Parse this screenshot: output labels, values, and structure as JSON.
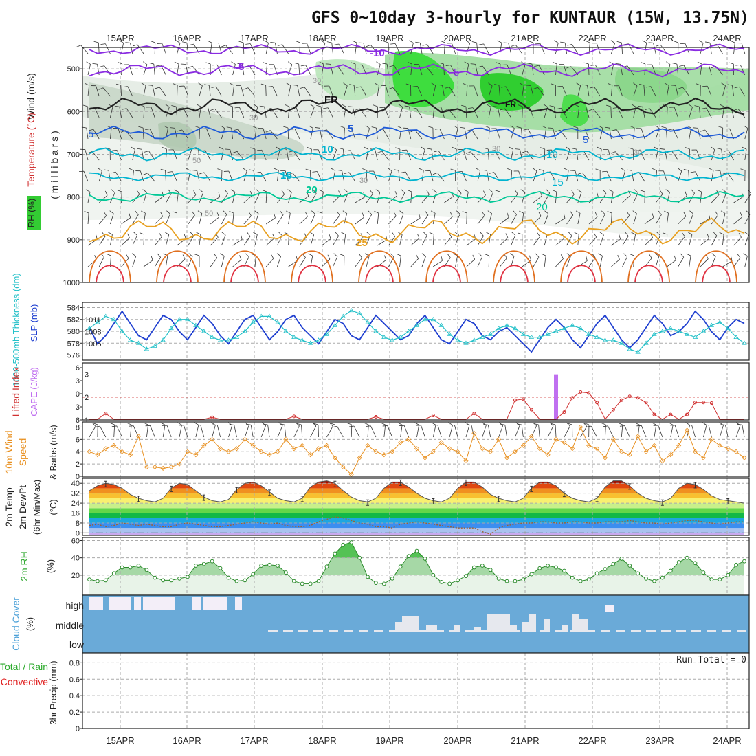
{
  "title": "GFS 0~10day 3-hourly for KUNTAUR (15W, 13.75N)",
  "date_labels": [
    "15APR",
    "16APR",
    "17APR",
    "18APR",
    "19APR",
    "20APR",
    "21APR",
    "22APR",
    "23APR",
    "24APR"
  ],
  "colors": {
    "rh_green": "#33cc33",
    "bright_green": "#00ee00",
    "temp_purple": "#8a2be2",
    "temp_blue": "#1e5ad8",
    "temp_cyan": "#00b4d0",
    "temp_teal": "#00c896",
    "temp_orange": "#e8a020",
    "slp_blue": "#1f3fd0",
    "thickness_cyan": "#22c0c8",
    "cape_violet": "#c070f0",
    "li_red": "#d03030",
    "wind_orange": "#e89020",
    "cloud_blue": "#6aaad8"
  },
  "chart_data": [
    {
      "type": "heatmap",
      "panel": "upper-air",
      "ylabel_parts": [
        "RH (%)",
        "Temperature (°C)",
        "Wind (m/s)"
      ],
      "yaxis_label": "( m i l l i b a r s )",
      "yticks": [
        500,
        600,
        700,
        800,
        900,
        1000
      ],
      "ylim": [
        1000,
        450
      ],
      "isotherm_labels": [
        "-10",
        "-5",
        "FR",
        "5",
        "10",
        "15",
        "20",
        "25"
      ],
      "rh_contour_labels": [
        "30",
        "50"
      ],
      "freezing_level_label": "FR"
    },
    {
      "type": "line",
      "panel": "slp-thickness",
      "ylabel_left": "1000-500mb Thickness (dm)",
      "ylabel_right": "SLP (mb)",
      "yticks_thickness": [
        576,
        578,
        580,
        582,
        584
      ],
      "yticks_slp": [
        1005,
        1008,
        1011
      ],
      "series": [
        {
          "name": "SLP (mb)",
          "values": [
            1009,
            1005,
            1007,
            1010,
            1013,
            1010,
            1007,
            1006,
            1009,
            1012,
            1011,
            1008,
            1006,
            1009,
            1012,
            1010,
            1007,
            1005,
            1008,
            1011,
            1012,
            1009,
            1006,
            1008,
            1011,
            1012,
            1009,
            1007,
            1005,
            1008,
            1011,
            1010,
            1007,
            1006,
            1009,
            1012,
            1010,
            1008,
            1006,
            1007,
            1010,
            1012,
            1009,
            1006,
            1005,
            1008,
            1011,
            1010,
            1007,
            1006,
            1008,
            1009,
            1007,
            1005,
            1003,
            1006,
            1009,
            1011,
            1009,
            1006,
            1004,
            1007,
            1010,
            1012,
            1009,
            1006,
            1004,
            1006,
            1009,
            1012,
            1010,
            1007,
            1008,
            1010,
            1013,
            1011,
            1008,
            1006,
            1009,
            1011,
            1010
          ]
        },
        {
          "name": "1000-500mb Thickness (dm)",
          "values": [
            580.5,
            581.5,
            582.5,
            582,
            580,
            578.5,
            578,
            577,
            577.5,
            578.5,
            580.5,
            582,
            582,
            581,
            580,
            579,
            578.5,
            578.5,
            579,
            580,
            581.5,
            582.5,
            582.5,
            581.5,
            580,
            579,
            578.5,
            578,
            578.5,
            579.5,
            581,
            582.5,
            583.5,
            583,
            581.5,
            580,
            579,
            578.5,
            579,
            580,
            581,
            582,
            582,
            581,
            579.5,
            578.5,
            578,
            578.5,
            579,
            579.5,
            580.5,
            581,
            580.5,
            579.5,
            579,
            579,
            579.5,
            580,
            580.5,
            581,
            580.5,
            579.5,
            579,
            578.5,
            578.5,
            578,
            577,
            576.5,
            578,
            579.5,
            580,
            580.5,
            580,
            579.5,
            579,
            580,
            581,
            581.5,
            580.5,
            579,
            578
          ]
        }
      ]
    },
    {
      "type": "bar",
      "panel": "cape-li",
      "ylabel_left": "Lifted Index",
      "ylabel_right": "CAPE (J/kg)",
      "yticks_li": [
        -6,
        -3,
        0,
        3,
        6
      ],
      "yticks_cape": [
        1,
        2,
        3
      ],
      "series": [
        {
          "name": "CAPE (J/kg)",
          "values": [
            [
              57,
              3.0
            ]
          ]
        },
        {
          "name": "Lifted Index",
          "values": [
            6,
            6,
            4.8,
            6,
            6,
            6,
            6,
            6,
            6,
            6,
            6,
            6,
            6,
            6,
            6,
            5.6,
            6,
            6,
            6,
            6,
            6,
            6,
            6,
            6,
            6,
            5.4,
            6,
            6,
            6,
            6,
            6,
            6,
            6,
            6,
            6,
            5.5,
            6,
            6,
            6,
            6,
            6,
            6,
            5.2,
            6,
            6,
            6,
            6,
            4.8,
            6,
            6,
            6,
            6,
            2,
            1.8,
            4,
            6,
            6,
            6,
            4.5,
            1.5,
            0.3,
            0.5,
            2.5,
            6,
            4,
            2,
            1.2,
            1.5,
            2.5,
            5,
            6,
            5,
            6,
            5,
            2.5,
            2.5,
            2.6,
            6,
            6,
            6,
            6
          ]
        }
      ]
    },
    {
      "type": "line",
      "panel": "wind-10m",
      "ylabel": "10m Wind Speed (m/s) & Barbs",
      "yticks": [
        0,
        2,
        4,
        6,
        8
      ],
      "ylim": [
        0,
        8.5
      ],
      "series": [
        {
          "name": "Speed",
          "values": [
            4,
            3.5,
            4.5,
            5,
            4,
            3.5,
            6.5,
            1.5,
            1.5,
            1.3,
            1.5,
            2,
            4,
            3.5,
            5,
            6,
            4.5,
            4,
            4.5,
            6,
            5,
            4,
            3.5,
            4,
            6,
            4.5,
            5,
            3.5,
            4.5,
            5,
            3,
            1.5,
            0.3,
            3,
            5,
            4,
            3.5,
            4,
            5.5,
            6,
            4.5,
            3,
            4,
            5.5,
            4.5,
            4,
            2.5,
            7,
            4.5,
            4,
            6,
            3,
            4,
            5,
            6.5,
            4.5,
            3.5,
            6,
            5.5,
            4.5,
            8,
            5,
            4.5,
            3,
            6,
            4,
            3.5,
            6.5,
            4,
            5,
            2.5,
            3.5,
            5,
            7.5,
            4,
            3,
            6,
            5,
            4.5,
            4,
            3
          ]
        }
      ]
    },
    {
      "type": "area",
      "panel": "temperature-2m",
      "ylabel": "2m Temp, 2m DewPt (6hr Min/Max) (°C)",
      "yticks": [
        0,
        8,
        16,
        24,
        32,
        40
      ],
      "ylim": [
        -2,
        44
      ],
      "series": [
        {
          "name": "2m Temp",
          "values": [
            34,
            38,
            40,
            39,
            36,
            31,
            28,
            26,
            25,
            28,
            36,
            40,
            39,
            34,
            29,
            26,
            25,
            27,
            35,
            40,
            41,
            38,
            33,
            28,
            26,
            25,
            28,
            37,
            41,
            42,
            40,
            34,
            29,
            26,
            25,
            28,
            36,
            41,
            41,
            37,
            32,
            28,
            26,
            25,
            28,
            36,
            41,
            41,
            37,
            31,
            28,
            26,
            25,
            28,
            36,
            41,
            41,
            38,
            32,
            28,
            26,
            25,
            28,
            37,
            42,
            42,
            38,
            32,
            28,
            26,
            25,
            28,
            36,
            40,
            39,
            35,
            30,
            27,
            26,
            25,
            24
          ]
        },
        {
          "name": "2m DewPt",
          "values": [
            6,
            7,
            5,
            6,
            8,
            7,
            6,
            7,
            6,
            5,
            5,
            7,
            8,
            7,
            6,
            5,
            5,
            6,
            7,
            8,
            9,
            8,
            7,
            8,
            6,
            5,
            5,
            6,
            9,
            11,
            13,
            12,
            10,
            8,
            7,
            5,
            5,
            4,
            7,
            8,
            9,
            8,
            7,
            6,
            5,
            4,
            4,
            4,
            1,
            -1,
            4,
            6,
            7,
            8,
            8,
            9,
            9,
            8,
            8,
            9,
            9,
            8,
            8,
            9,
            9,
            9,
            10,
            9,
            8,
            8,
            7,
            8,
            9,
            10,
            10,
            9,
            8,
            7,
            8,
            9,
            9
          ]
        }
      ]
    },
    {
      "type": "area",
      "panel": "rh-2m",
      "ylabel": "2m RH (%)",
      "yticks": [
        20,
        40,
        60
      ],
      "ylim": [
        0,
        62
      ],
      "series": [
        {
          "name": "2m RH",
          "values": [
            15,
            13,
            14,
            22,
            29,
            29,
            31,
            26,
            17,
            14,
            14,
            16,
            18,
            31,
            33,
            36,
            28,
            17,
            13,
            14,
            21,
            31,
            32,
            31,
            23,
            13,
            10,
            10,
            13,
            30,
            45,
            55,
            58,
            40,
            18,
            11,
            10,
            16,
            30,
            42,
            48,
            39,
            20,
            12,
            10,
            14,
            19,
            29,
            31,
            26,
            16,
            13,
            13,
            15,
            21,
            28,
            31,
            29,
            25,
            17,
            13,
            15,
            22,
            27,
            33,
            39,
            31,
            22,
            16,
            13,
            17,
            25,
            35,
            40,
            34,
            23,
            15,
            15,
            20,
            32,
            36
          ]
        }
      ]
    },
    {
      "type": "bar",
      "panel": "cloud-cover",
      "ylabel": "Cloud Cover (%)",
      "levels": [
        "high",
        "middle",
        "low"
      ]
    },
    {
      "type": "bar",
      "panel": "precipitation",
      "ylabel": "3hr Precip (mm)",
      "ylabel_extra": [
        "Total / Rain",
        "Convective"
      ],
      "yticks": [
        0,
        0.2,
        0.4,
        0.6,
        0.8
      ],
      "ylim": [
        0,
        0.92
      ],
      "run_total_text": "Run Total = 0"
    }
  ]
}
